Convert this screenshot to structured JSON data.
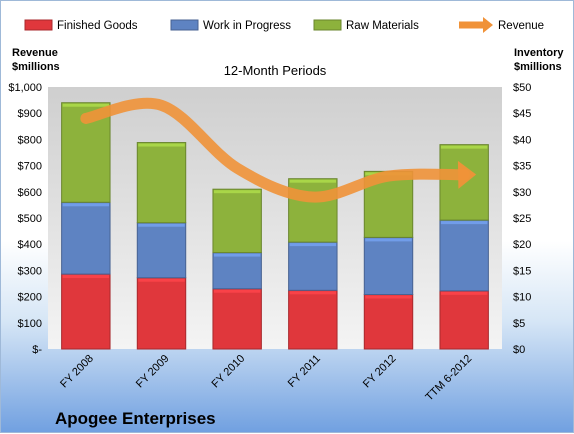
{
  "company_name": "Apogee Enterprises",
  "chart_data": {
    "type": "bar",
    "stacked": true,
    "title": "12-Month Periods",
    "categories": [
      "FY 2008",
      "FY 2009",
      "FY 2010",
      "FY 2011",
      "FY 2012",
      "TTM 6-2012"
    ],
    "series": [
      {
        "name": "Finished Goods",
        "axis": "right",
        "color": "#e0373c",
        "values": [
          14.3,
          13.6,
          11.5,
          11.2,
          10.4,
          11.1
        ]
      },
      {
        "name": "Work in Progress",
        "axis": "right",
        "color": "#5e83c2",
        "values": [
          13.7,
          10.5,
          6.9,
          9.2,
          10.9,
          13.5
        ]
      },
      {
        "name": "Raw Materials",
        "axis": "right",
        "color": "#8db23c",
        "values": [
          19.0,
          15.3,
          12.1,
          12.1,
          12.6,
          14.4
        ]
      },
      {
        "name": "Revenue",
        "type": "line",
        "axis": "left",
        "color": "#f09238",
        "values": [
          880,
          930,
          690,
          580,
          660,
          665
        ]
      }
    ],
    "left_axis": {
      "label_lines": [
        "Revenue",
        "$millions"
      ],
      "ylim": [
        0,
        1000
      ],
      "ticks": [
        0,
        100,
        200,
        300,
        400,
        500,
        600,
        700,
        800,
        900,
        1000
      ],
      "tick_labels": [
        "$-",
        "$100",
        "$200",
        "$300",
        "$400",
        "$500",
        "$600",
        "$700",
        "$800",
        "$900",
        "$1,000"
      ]
    },
    "right_axis": {
      "label_lines": [
        "Inventory",
        "$millions"
      ],
      "ylim": [
        0,
        50
      ],
      "ticks": [
        0,
        5,
        10,
        15,
        20,
        25,
        30,
        35,
        40,
        45,
        50
      ],
      "tick_labels": [
        "$0",
        "$5",
        "$10",
        "$15",
        "$20",
        "$25",
        "$30",
        "$35",
        "$40",
        "$45",
        "$50"
      ]
    },
    "legend": "top",
    "grid": false
  }
}
